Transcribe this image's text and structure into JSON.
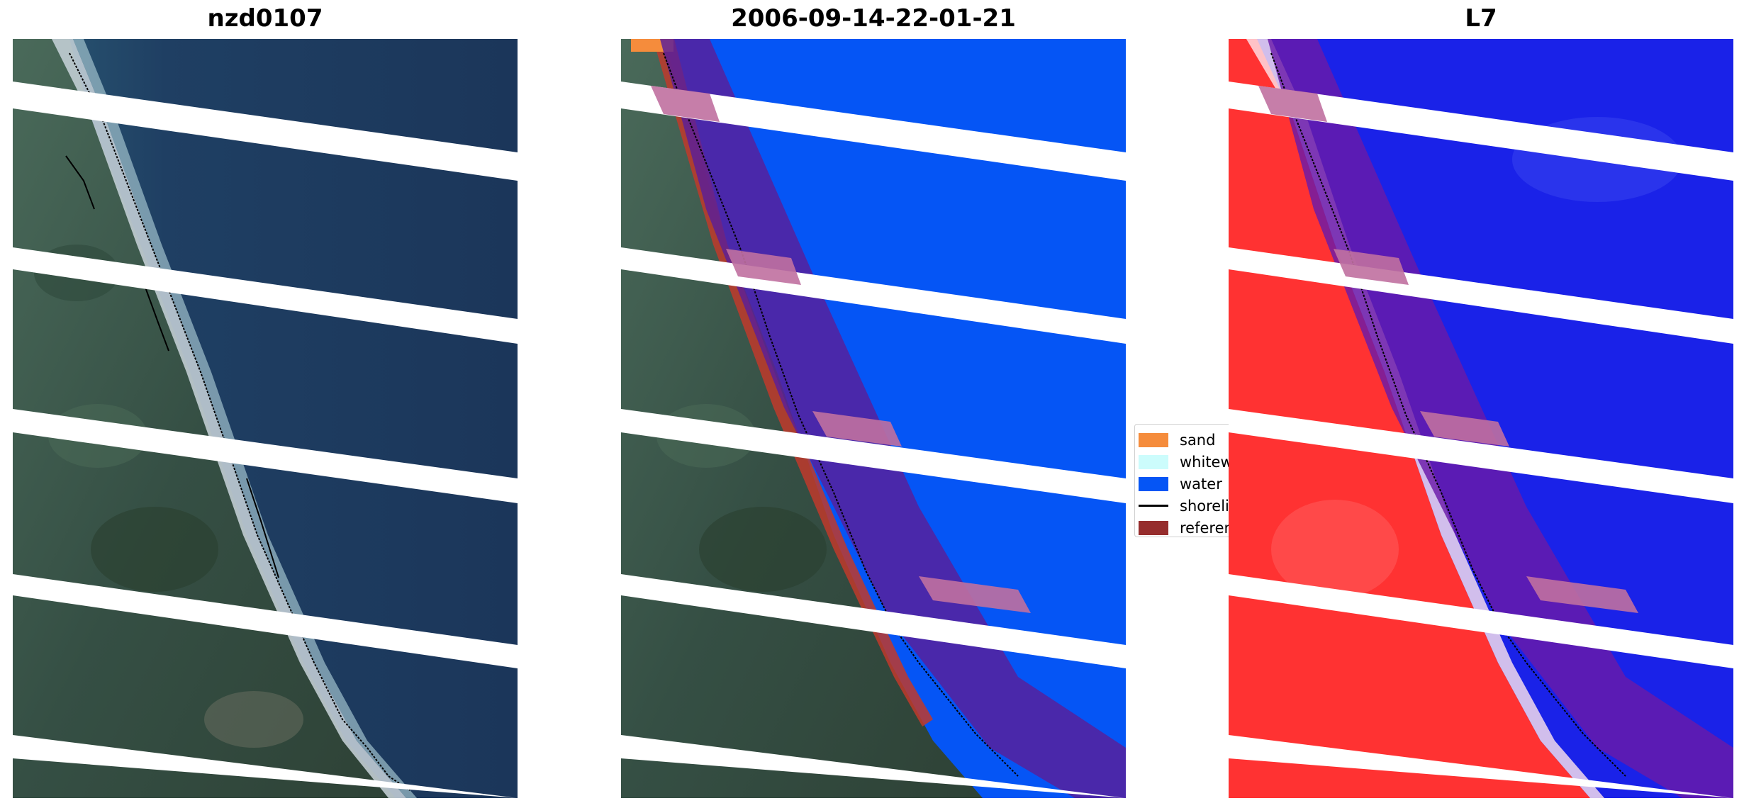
{
  "panels": [
    {
      "title": "nzd0107"
    },
    {
      "title": "2006-09-14-22-01-21"
    },
    {
      "title": "L7"
    }
  ],
  "legend": {
    "items": [
      {
        "label": "sand",
        "color": "#f58c3c",
        "kind": "patch"
      },
      {
        "label": "whitewater",
        "color": "#ccfcfc",
        "kind": "patch"
      },
      {
        "label": "water",
        "color": "#0555f5",
        "kind": "patch"
      },
      {
        "label": "shoreline",
        "color": "#000000",
        "kind": "line"
      },
      {
        "label": "reference shoreline buffer",
        "color": "#962d2d",
        "kind": "patch"
      }
    ]
  },
  "colors": {
    "ocean": "#1e3a5c",
    "land": "#3c5a4c",
    "surf": "#c8d2d8",
    "water_class": "#0555f5",
    "buffer": "#7a1aa0",
    "sand_class": "#c0392b",
    "mndwi_land": "#ff3030",
    "mndwi_water": "#1a22e8"
  }
}
